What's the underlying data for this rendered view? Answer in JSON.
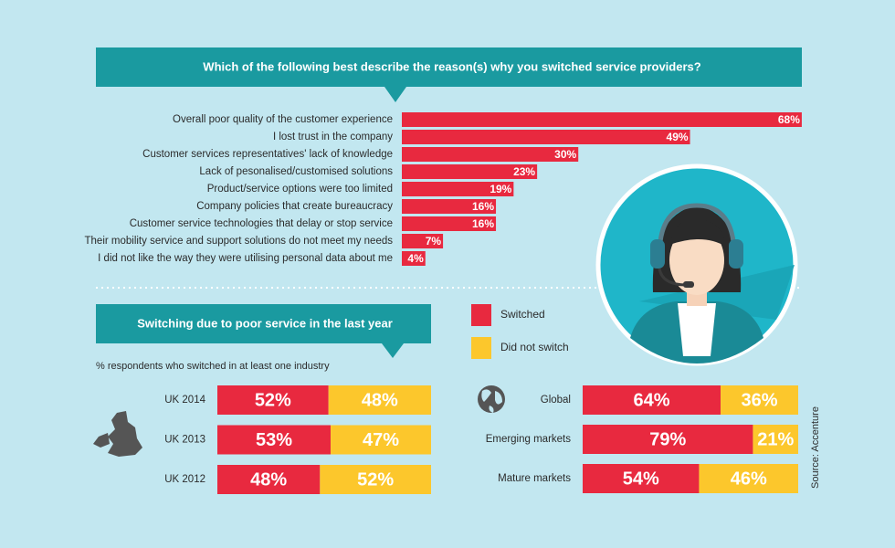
{
  "chart_data": [
    {
      "type": "bar",
      "title": "Which of the following best describe the reason(s) why you switched service providers?",
      "categories": [
        "Overall poor quality of the customer experience",
        "I lost trust in the company",
        "Customer services representatives' lack of knowledge",
        "Lack of pesonalised/customised solutions",
        "Product/service options were too limited",
        "Company policies that create bureaucracy",
        "Customer service technologies that delay or stop service",
        "Their mobility service and support solutions do not meet my needs",
        "I did not like the way they were utilising personal data about me"
      ],
      "values": [
        68,
        49,
        30,
        23,
        19,
        16,
        16,
        7,
        4
      ],
      "value_labels": [
        "68%",
        "49%",
        "30%",
        "23%",
        "19%",
        "16%",
        "16%",
        "7%",
        "4%"
      ],
      "color": "#e8293f"
    },
    {
      "type": "stacked-bar",
      "title": "Switching due to poor service in the last year",
      "subtitle": "% respondents who switched in at least one industry",
      "categories": [
        "UK 2014",
        "UK 2013",
        "UK 2012"
      ],
      "series": [
        {
          "name": "Switched",
          "color": "#e8293f",
          "values": [
            52,
            53,
            48
          ],
          "value_labels": [
            "52%",
            "53%",
            "48%"
          ]
        },
        {
          "name": "Did not switch",
          "color": "#fcc72c",
          "values": [
            48,
            47,
            52
          ],
          "value_labels": [
            "48%",
            "47%",
            "52%"
          ]
        }
      ],
      "legend": true
    },
    {
      "type": "stacked-bar",
      "categories": [
        "Global",
        "Emerging markets",
        "Mature markets"
      ],
      "series": [
        {
          "color": "#e8293f",
          "values": [
            64,
            79,
            54
          ],
          "value_labels": [
            "64%",
            "79%",
            "54%"
          ]
        },
        {
          "color": "#fcc72c",
          "values": [
            36,
            21,
            46
          ],
          "value_labels": [
            "36%",
            "21%",
            "46%"
          ]
        }
      ],
      "source": "Source: Accenture"
    }
  ]
}
